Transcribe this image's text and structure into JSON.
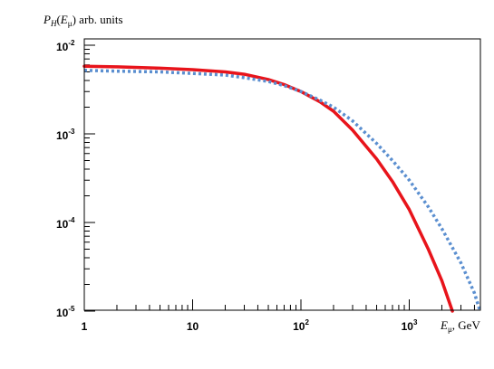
{
  "chart_data": {
    "type": "line",
    "ylabel": {
      "symbol": "P",
      "symbol_sub": "H",
      "arg": "E",
      "arg_sub": "μ",
      "units": "arb. units"
    },
    "xlabel": {
      "symbol": "E",
      "symbol_sub": "μ",
      "units": ", GeV"
    },
    "x_scale": "log",
    "y_scale": "log",
    "xlim": [
      1,
      7000
    ],
    "ylim": [
      1e-05,
      0.015
    ],
    "x_ticks": [
      {
        "value": 1,
        "label": "1"
      },
      {
        "value": 10,
        "label": "10"
      },
      {
        "value": 100,
        "label": "10",
        "exp": "2"
      },
      {
        "value": 1000,
        "label": "10",
        "exp": "3"
      }
    ],
    "y_ticks": [
      {
        "value": 0.01,
        "label": "10",
        "exp": "-2"
      },
      {
        "value": 0.001,
        "label": "10",
        "exp": "-3"
      },
      {
        "value": 0.0001,
        "label": "10",
        "exp": "-4"
      },
      {
        "value": 1e-05,
        "label": "10",
        "exp": "-5"
      }
    ],
    "grid": false,
    "series": [
      {
        "style": "solid",
        "color": "#e8141b",
        "x": [
          1,
          2,
          5,
          10,
          20,
          30,
          50,
          70,
          100,
          150,
          200,
          300,
          500,
          700,
          1000,
          1500,
          2000,
          2500
        ],
        "y": [
          0.0058,
          0.0057,
          0.0055,
          0.0053,
          0.005,
          0.0047,
          0.0041,
          0.0036,
          0.003,
          0.0023,
          0.0018,
          0.0011,
          0.00052,
          0.00029,
          0.00014,
          5e-05,
          2.2e-05,
          1e-05
        ]
      },
      {
        "style": "dotted",
        "color": "#5b8fd0",
        "x": [
          1,
          2,
          5,
          10,
          20,
          30,
          50,
          70,
          100,
          150,
          200,
          300,
          500,
          700,
          1000,
          1500,
          2000,
          3000,
          4000,
          4500
        ],
        "y": [
          0.0052,
          0.0051,
          0.005,
          0.0048,
          0.0046,
          0.0043,
          0.0039,
          0.0035,
          0.003,
          0.0024,
          0.002,
          0.0014,
          0.00078,
          0.0005,
          0.0003,
          0.00015,
          8.5e-05,
          3.5e-05,
          1.6e-05,
          1e-05
        ]
      }
    ]
  }
}
